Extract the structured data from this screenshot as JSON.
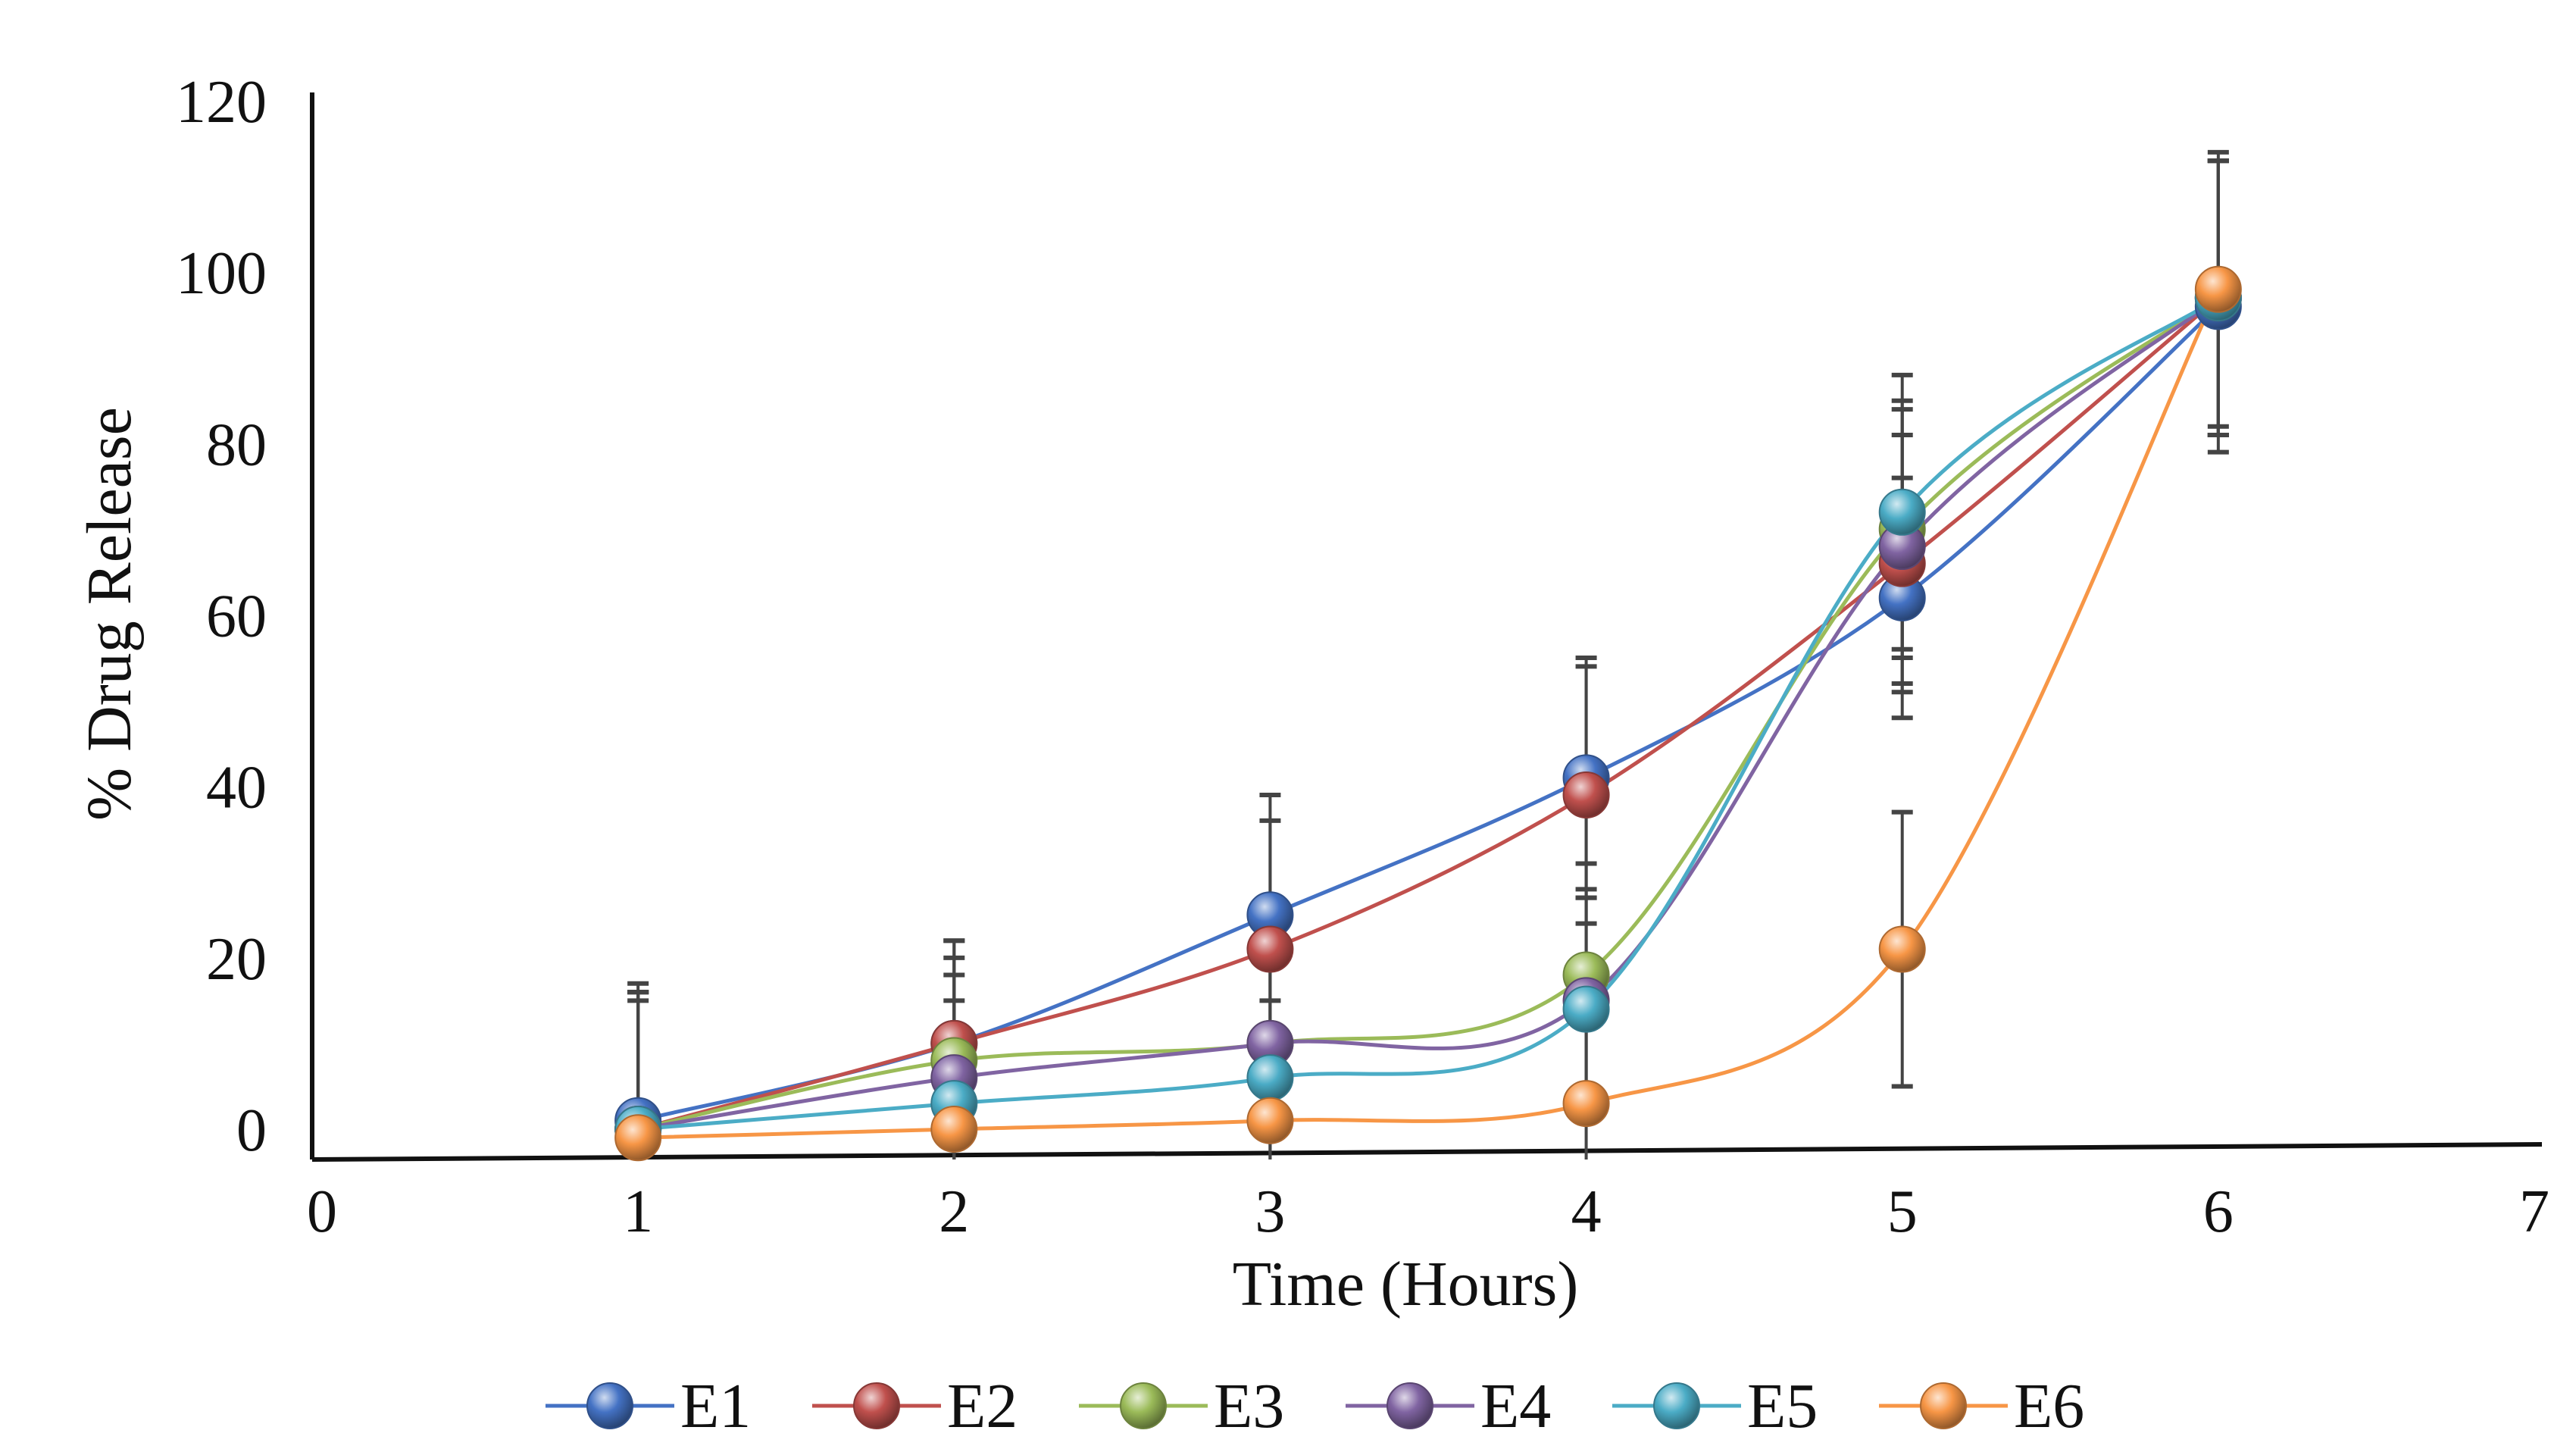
{
  "chart_data": {
    "type": "line",
    "title": "",
    "xlabel": "Time (Hours)",
    "ylabel": "% Drug Release",
    "xlim": [
      0,
      7
    ],
    "ylim": [
      0,
      120
    ],
    "xticks": [
      "0",
      "1",
      "2",
      "3",
      "4",
      "5",
      "6",
      "7"
    ],
    "yticks": [
      "0",
      "20",
      "40",
      "60",
      "80",
      "100",
      "120"
    ],
    "grid": false,
    "legend_position": "bottom",
    "x": [
      1,
      2,
      3,
      4,
      5,
      6
    ],
    "series": [
      {
        "name": "E1",
        "color": "#4472C4",
        "values": [
          1,
          10,
          25,
          41,
          62,
          96
        ],
        "error": [
          16,
          12,
          14,
          14,
          14,
          17
        ]
      },
      {
        "name": "E2",
        "color": "#C0504D",
        "values": [
          0,
          10,
          21,
          39,
          66,
          97
        ],
        "error": [
          16,
          12,
          15,
          15,
          15,
          16
        ]
      },
      {
        "name": "E3",
        "color": "#9BBB59",
        "values": [
          0,
          8,
          10,
          18,
          70,
          97
        ],
        "error": [
          16,
          12,
          14,
          13,
          15,
          16
        ]
      },
      {
        "name": "E4",
        "color": "#8064A2",
        "values": [
          0,
          6,
          10,
          15,
          68,
          97
        ],
        "error": [
          16,
          12,
          14,
          13,
          16,
          16
        ]
      },
      {
        "name": "E5",
        "color": "#4BACC6",
        "values": [
          0,
          3,
          6,
          14,
          72,
          97
        ],
        "error": [
          16,
          12,
          14,
          13,
          16,
          16
        ]
      },
      {
        "name": "E6",
        "color": "#F79646",
        "values": [
          -1,
          0,
          1,
          3,
          21,
          98
        ],
        "error": [
          16,
          12,
          14,
          13,
          16,
          16
        ]
      }
    ]
  }
}
